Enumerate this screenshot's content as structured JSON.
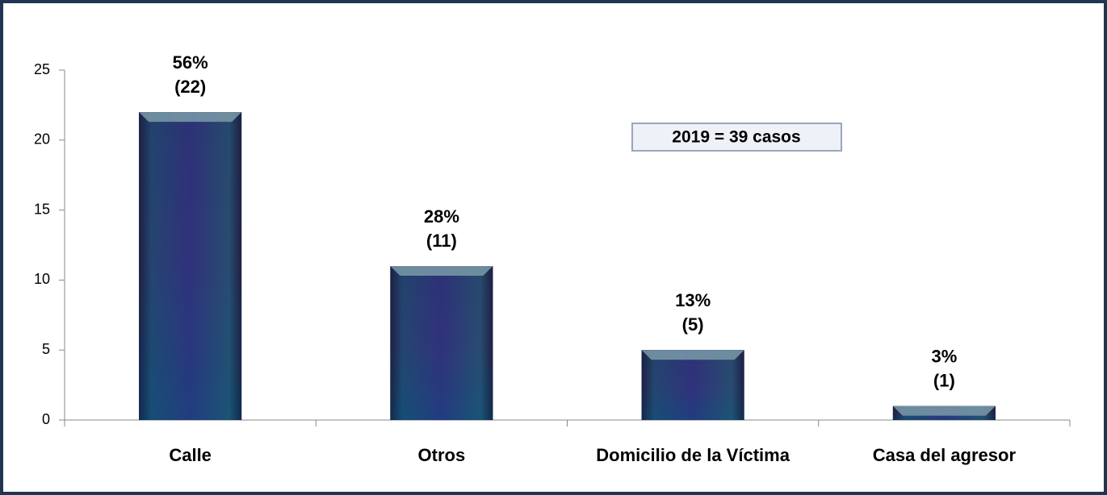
{
  "chart_data": {
    "type": "bar",
    "categories": [
      "Calle",
      "Otros",
      "Domicilio de la Víctima",
      "Casa del agresor"
    ],
    "values": [
      22,
      11,
      5,
      1
    ],
    "value_labels": [
      "(22)",
      "(11)",
      "(5)",
      "(1)"
    ],
    "percent_labels": [
      "56%",
      "28%",
      "13%",
      "3%"
    ],
    "annotation": "2019 = 39  casos",
    "color": "#2a3f7a",
    "ylim": [
      0,
      25
    ],
    "yticks": [
      0,
      5,
      10,
      15,
      20,
      25
    ],
    "grid": false
  }
}
